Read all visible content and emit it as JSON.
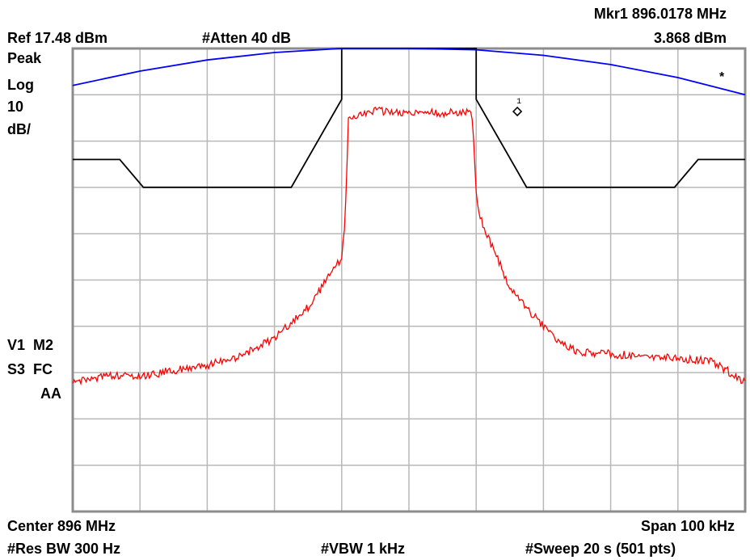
{
  "header": {
    "marker_readout": "Mkr1  896.0178 MHz",
    "marker_level": "3.868 dBm",
    "ref_level": "Ref 17.48 dBm",
    "attenuation": "#Atten 40 dB"
  },
  "left_panel": {
    "detector": "Peak",
    "scale_type": "Log",
    "scale_value": "10",
    "scale_unit": "dB/",
    "trace_status_1": "V1  M2",
    "trace_status_2": "S3  FC",
    "trace_status_3": "AA"
  },
  "footer": {
    "center": "Center 896 MHz",
    "span": "Span 100 kHz",
    "rbw": "#Res BW 300 Hz",
    "vbw": "#VBW 1 kHz",
    "sweep": "#Sweep 20 s (501 pts)"
  },
  "annotations": {
    "marker_label": "1",
    "star": "*"
  },
  "colors": {
    "grid": "#b8b8b8",
    "frame": "#8c8c8c",
    "trace_red": "#ff0000",
    "trace_blue": "#0000ff",
    "mask_black": "#000000"
  },
  "chart_data": {
    "type": "line",
    "xlabel": "",
    "ylabel": "",
    "x_unit": "MHz",
    "y_unit": "dBm",
    "xlim": [
      895.95,
      896.05
    ],
    "ylim": [
      -82.52,
      17.48
    ],
    "x_divisions": 10,
    "y_divisions": 10,
    "grid": true,
    "marker": {
      "x": 896.0178,
      "y": 3.868
    },
    "series": [
      {
        "color": "#000000",
        "x": [
          895.95,
          895.957,
          895.9605,
          895.9825,
          895.99,
          895.99,
          896.01,
          896.01,
          896.0175,
          896.0395,
          896.043,
          896.05
        ],
        "y": [
          -6.5,
          -6.5,
          -12.5,
          -12.5,
          6.5,
          17.5,
          17.5,
          6.5,
          -12.5,
          -12.5,
          -6.5,
          -6.5
        ]
      },
      {
        "color": "#0000ff",
        "x": [
          895.95,
          895.96,
          895.97,
          895.98,
          895.99,
          896.0,
          896.01,
          896.02,
          896.03,
          896.04,
          896.05
        ],
        "y": [
          9.5,
          12.6,
          15.0,
          16.6,
          17.5,
          17.5,
          17.2,
          16.0,
          14.0,
          11.2,
          7.5
        ]
      },
      {
        "color": "#ff0000",
        "x": [
          895.95,
          895.955,
          895.96,
          895.965,
          895.97,
          895.975,
          895.98,
          895.983,
          895.985,
          895.988,
          895.99,
          895.9905,
          895.991,
          895.995,
          896.0,
          896.005,
          896.009,
          896.0095,
          896.01,
          896.0105,
          896.012,
          896.015,
          896.018,
          896.022,
          896.025,
          896.03,
          896.035,
          896.04,
          896.045,
          896.05
        ],
        "y": [
          -55.0,
          -53.0,
          -53.5,
          -52.0,
          -51.0,
          -49.0,
          -45.0,
          -41.0,
          -38.5,
          -32.0,
          -27.5,
          -20.0,
          2.5,
          4.0,
          3.5,
          3.5,
          4.0,
          2.0,
          -14.0,
          -18.5,
          -24.0,
          -34.0,
          -39.5,
          -45.5,
          -48.0,
          -48.5,
          -49.0,
          -49.5,
          -50.0,
          -54.5
        ]
      }
    ]
  }
}
